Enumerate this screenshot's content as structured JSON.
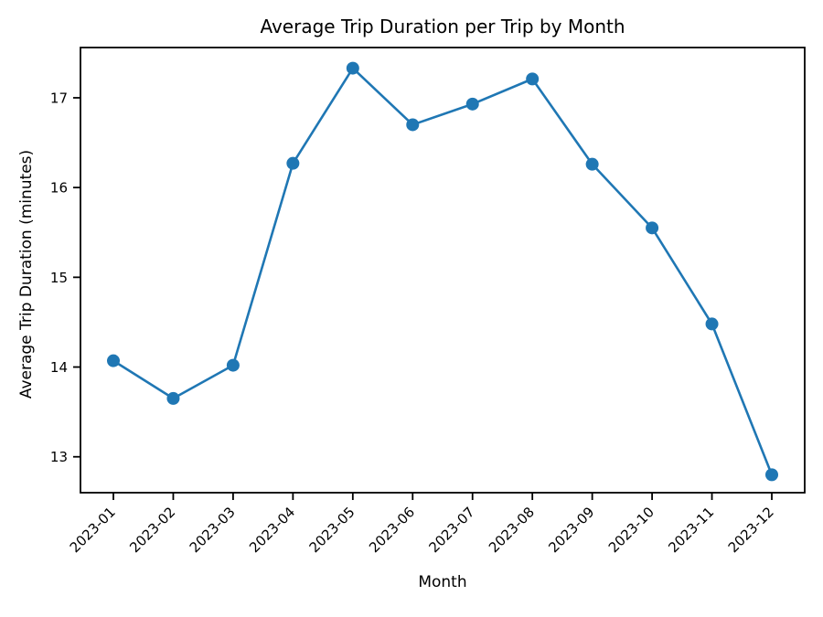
{
  "chart_data": {
    "type": "line",
    "title": "Average Trip Duration per Trip by Month",
    "xlabel": "Month",
    "ylabel": "Average Trip Duration (minutes)",
    "categories": [
      "2023-01",
      "2023-02",
      "2023-03",
      "2023-04",
      "2023-05",
      "2023-06",
      "2023-07",
      "2023-08",
      "2023-09",
      "2023-10",
      "2023-11",
      "2023-12"
    ],
    "series": [
      {
        "name": "Average Trip Duration",
        "values": [
          14.07,
          13.65,
          14.02,
          16.27,
          17.33,
          16.7,
          16.93,
          17.21,
          16.26,
          15.55,
          14.48,
          12.8
        ]
      }
    ],
    "yticks": [
      13,
      14,
      15,
      16,
      17
    ],
    "ylim": [
      12.6,
      17.56
    ],
    "x_tick_rotation_deg": 45,
    "grid": false,
    "legend": "none",
    "line_color": "#1f77b4",
    "marker": "circle",
    "axis_color": "#000000",
    "text_color": "#000000",
    "background_color": "#ffffff"
  }
}
